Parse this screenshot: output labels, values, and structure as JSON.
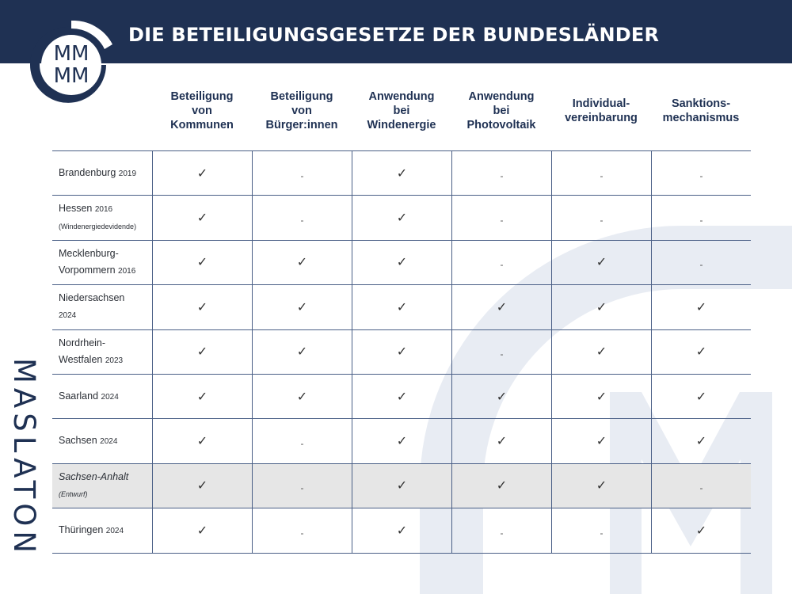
{
  "header": {
    "title": "DIE BETEILIGUNGSGESETZE DER BUNDESLÄNDER"
  },
  "logo": {
    "letters": [
      "MM",
      "MM"
    ],
    "name": "mm-logo"
  },
  "brand": {
    "vertical_text": "MASLATON"
  },
  "table": {
    "columns": [
      "Beteiligung\nvon\nKommunen",
      "Beteiligung\nvon\nBürger:innen",
      "Anwendung\nbei\nWindenergie",
      "Anwendung\nbei\nPhotovoltaik",
      "Individual-\nvereinbarung",
      "Sanktions-\nmechanismus"
    ],
    "rows": [
      {
        "name1": "Brandenburg",
        "year1": "2019",
        "name2": "",
        "year2": "",
        "cells": [
          "✓",
          "-",
          "✓",
          "-",
          "-",
          "-"
        ]
      },
      {
        "name1": "Hessen",
        "year1": "2016",
        "name2": "(Windenergiedevidende)",
        "year2": "",
        "cells": [
          "✓",
          "-",
          "✓",
          "-",
          "-",
          "-"
        ]
      },
      {
        "name1": "Mecklenburg-",
        "year1": "",
        "name2": "Vorpommern",
        "year2": "2016",
        "cells": [
          "✓",
          "✓",
          "✓",
          "-",
          "✓",
          "-"
        ]
      },
      {
        "name1": "Niedersachsen",
        "year1": "",
        "name2": "2024",
        "year2": "",
        "cells": [
          "✓",
          "✓",
          "✓",
          "✓",
          "✓",
          "✓"
        ]
      },
      {
        "name1": "Nordrhein-",
        "year1": "",
        "name2": "Westfalen",
        "year2": "2023",
        "cells": [
          "✓",
          "✓",
          "✓",
          "-",
          "✓",
          "✓"
        ]
      },
      {
        "name1": "Saarland",
        "year1": "2024",
        "name2": "",
        "year2": "",
        "cells": [
          "✓",
          "✓",
          "✓",
          "✓",
          "✓",
          "✓"
        ]
      },
      {
        "name1": "Sachsen",
        "year1": "2024",
        "name2": "",
        "year2": "",
        "cells": [
          "✓",
          "-",
          "✓",
          "✓",
          "✓",
          "✓"
        ]
      },
      {
        "name1": "Sachsen-Anhalt",
        "year1": "",
        "name2": "(Entwurf)",
        "year2": "",
        "cells": [
          "✓",
          "-",
          "✓",
          "✓",
          "✓",
          "-"
        ],
        "shaded": true
      },
      {
        "name1": "Thüringen",
        "year1": "2024",
        "name2": "",
        "year2": "",
        "cells": [
          "✓",
          "-",
          "✓",
          "-",
          "-",
          "✓"
        ]
      }
    ]
  },
  "colors": {
    "navy": "#1f3153",
    "grid": "#4a5f86",
    "shade": "#e6e6e6",
    "watermark": "#e8ecf3"
  }
}
